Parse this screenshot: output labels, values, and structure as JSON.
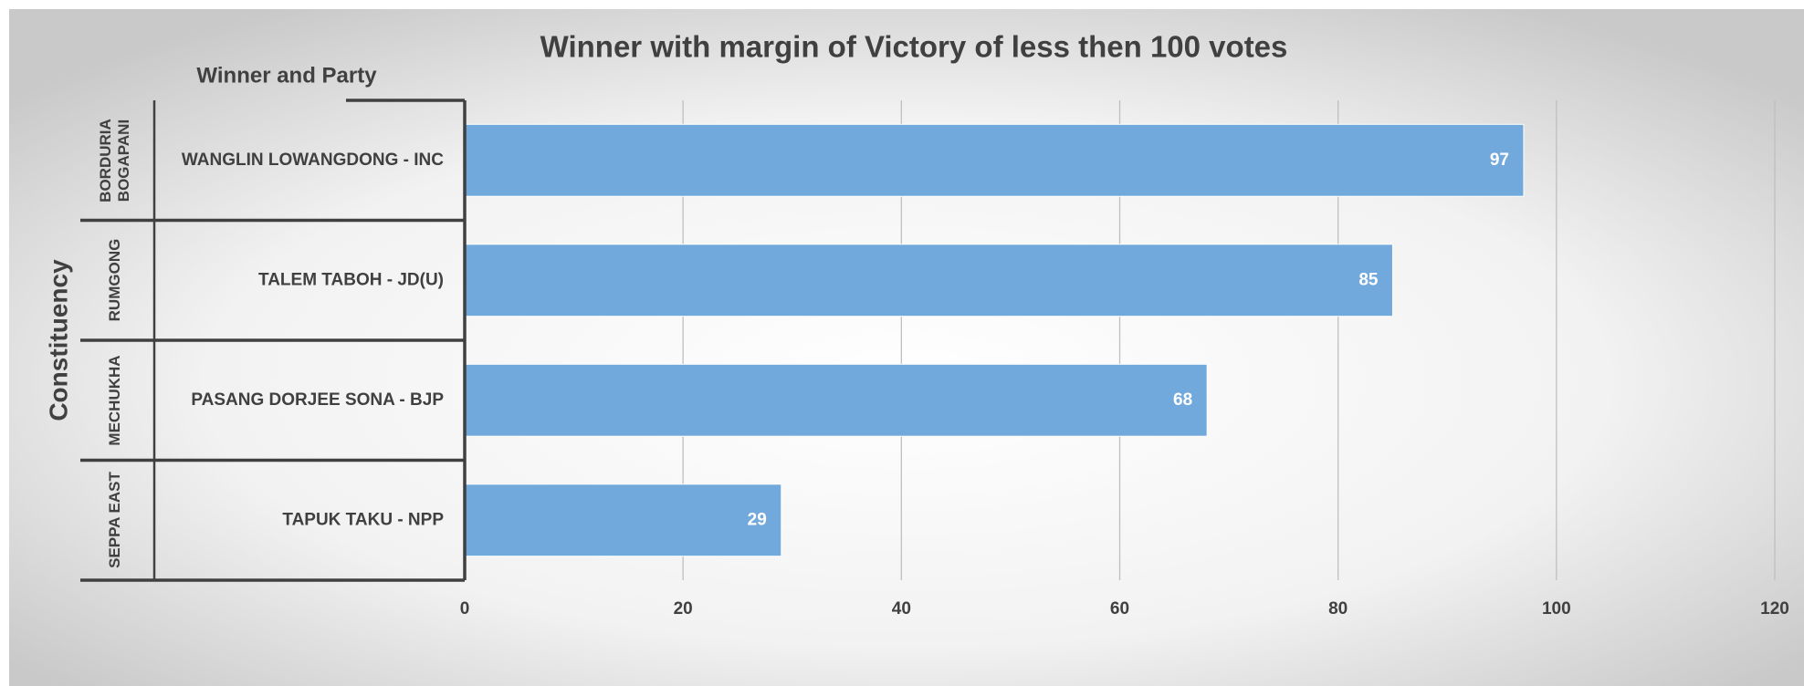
{
  "chart_data": {
    "type": "bar",
    "orientation": "horizontal",
    "title": "Winner with margin of Victory of less then 100 votes",
    "category_header": "Winner and Party",
    "y_label": "Constituency",
    "constituencies": [
      "BORDURIA BOGAPANI",
      "RUMGONG",
      "MECHUKHA",
      "SEPPA EAST"
    ],
    "categories": [
      "WANGLIN LOWANGDONG - INC",
      "TALEM TABOH - JD(U)",
      "PASANG DORJEE SONA - BJP",
      "TAPUK TAKU - NPP"
    ],
    "values": [
      97,
      85,
      68,
      29
    ],
    "color": "#72a9dc",
    "xlim": [
      0,
      120
    ],
    "xticks": [
      0,
      20,
      40,
      60,
      80,
      100,
      120
    ],
    "grid": true
  }
}
